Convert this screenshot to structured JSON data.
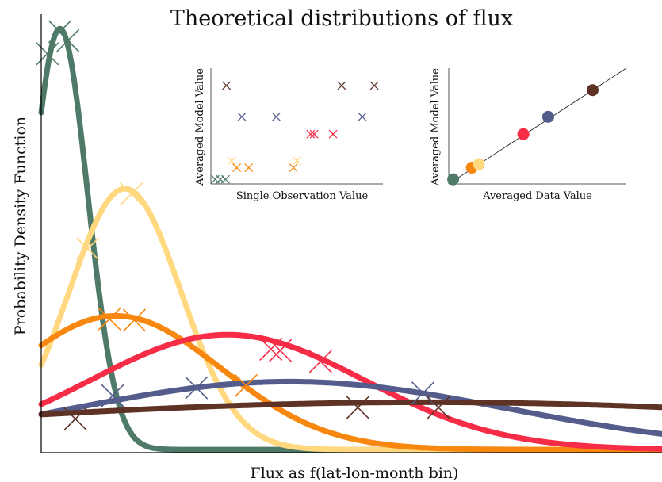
{
  "chart_data": [
    {
      "type": "line",
      "title": "Theoretical distributions of flux",
      "xlabel": "Flux as f(lat-lon-month bin)",
      "ylabel": "Probability Density Function",
      "xlim": [
        0,
        100
      ],
      "ylim": [
        0,
        1.0
      ],
      "grid": false,
      "series": [
        {
          "color": "#4e7a67",
          "mu": 3.0,
          "sigma": 4.5,
          "amp": 0.96,
          "markers": [
            [
              1,
              0.91
            ],
            [
              3,
              0.96
            ],
            [
              4.3,
              0.94
            ]
          ]
        },
        {
          "color": "#ffd880",
          "mu": 13.5,
          "sigma": 9.0,
          "amp": 0.595,
          "markers": [
            [
              7.5,
              0.465
            ],
            [
              14.5,
              0.59
            ]
          ]
        },
        {
          "color": "#f7870f",
          "mu": 12.0,
          "sigma": 17.0,
          "amp": 0.305,
          "markers": [
            [
              11,
              0.305
            ],
            [
              15,
              0.302
            ],
            [
              33,
              0.153
            ]
          ]
        },
        {
          "color": "#f72c47",
          "mu": 30.0,
          "sigma": 22.0,
          "amp": 0.262,
          "markers": [
            [
              37,
              0.236
            ],
            [
              38.5,
              0.233
            ],
            [
              45,
              0.208
            ]
          ]
        },
        {
          "color": "#545c8c",
          "mu": 40.0,
          "sigma": 35.0,
          "amp": 0.155,
          "markers": [
            [
              11.5,
              0.13
            ],
            [
              25,
              0.148
            ],
            [
              61.5,
              0.136
            ]
          ]
        },
        {
          "color": "#5e3325",
          "mu": 62.0,
          "sigma": 80.0,
          "amp": 0.108,
          "markers": [
            [
              5.5,
              0.077
            ],
            [
              51,
              0.103
            ],
            [
              64,
              0.103
            ]
          ]
        }
      ]
    },
    {
      "type": "scatter",
      "xlabel": "Single Observation Value",
      "ylabel": "Averaged Model Value",
      "xlim": [
        0,
        100
      ],
      "ylim": [
        0,
        100
      ],
      "points": [
        {
          "color": "#4e7a67",
          "x": [
            2.5,
            5.5,
            8.5
          ],
          "y": [
            4,
            4,
            4
          ]
        },
        {
          "color": "#ffd880",
          "x": [
            12,
            50
          ],
          "y": [
            20,
            20
          ]
        },
        {
          "color": "#f7870f",
          "x": [
            15,
            22,
            48
          ],
          "y": [
            14,
            14,
            14
          ]
        },
        {
          "color": "#f72c47",
          "x": [
            58,
            60,
            71
          ],
          "y": [
            43,
            43,
            43
          ]
        },
        {
          "color": "#545c8c",
          "x": [
            18,
            38,
            88
          ],
          "y": [
            58,
            58,
            58
          ]
        },
        {
          "color": "#5e3325",
          "x": [
            9,
            76,
            95
          ],
          "y": [
            85,
            85,
            85
          ]
        }
      ]
    },
    {
      "type": "scatter",
      "xlabel": "Averaged Data Value",
      "ylabel": "Averaged Model Value",
      "xlim": [
        0,
        100
      ],
      "ylim": [
        0,
        100
      ],
      "points": [
        {
          "color": "#4e7a67",
          "x": [
            2.5
          ],
          "y": [
            4
          ]
        },
        {
          "color": "#f7870f",
          "x": [
            13
          ],
          "y": [
            14
          ]
        },
        {
          "color": "#ffd880",
          "x": [
            17
          ],
          "y": [
            17
          ]
        },
        {
          "color": "#f72c47",
          "x": [
            42
          ],
          "y": [
            43
          ]
        },
        {
          "color": "#545c8c",
          "x": [
            56
          ],
          "y": [
            58
          ]
        },
        {
          "color": "#5e3325",
          "x": [
            81
          ],
          "y": [
            81
          ]
        }
      ]
    }
  ]
}
